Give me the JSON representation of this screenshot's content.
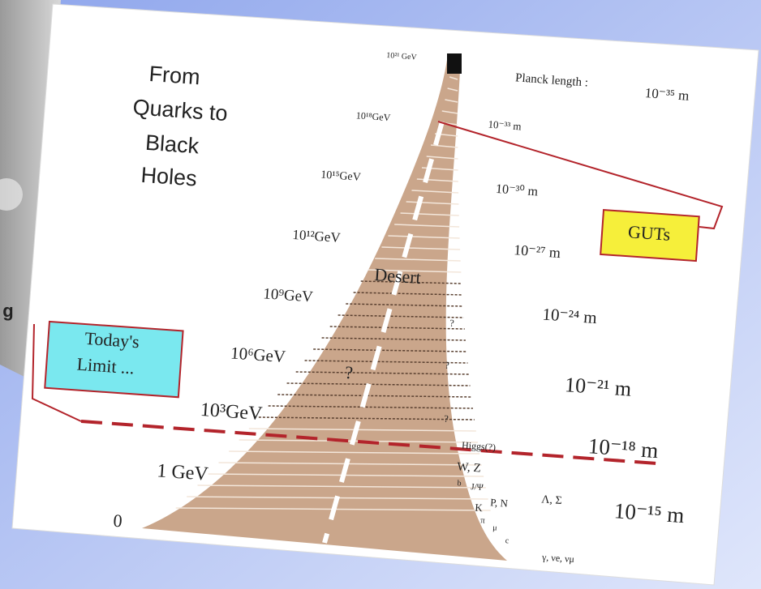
{
  "left_slide": {
    "fragment": "g"
  },
  "card": {
    "title": [
      "From",
      "Quarks to",
      "Black",
      "Holes"
    ],
    "energies": [
      "10²¹ GeV",
      "10¹⁸GeV",
      "10¹⁵GeV",
      "10¹²GeV",
      "10⁹GeV",
      "10⁶GeV",
      "10³GeV",
      "1 GeV",
      "0"
    ],
    "planck_label": "Planck length :",
    "lengths": [
      "10⁻³⁵ m",
      "10⁻³³ m",
      "10⁻³⁰ m",
      "10⁻²⁷ m",
      "10⁻²⁴ m",
      "10⁻²¹ m",
      "10⁻¹⁸ m",
      "10⁻¹⁵ m"
    ],
    "desert": "Desert",
    "unknowns": [
      "?",
      "?",
      "?",
      "?"
    ],
    "particles": [
      "Higgs(?)",
      "W, Z",
      "b",
      "J/Ψ",
      "P, N",
      "K",
      "π",
      "μ",
      "c",
      "Λ, Σ",
      "γ, νe, νμ"
    ],
    "guts": "GUTs",
    "limit": [
      "Today's",
      "Limit ..."
    ]
  }
}
